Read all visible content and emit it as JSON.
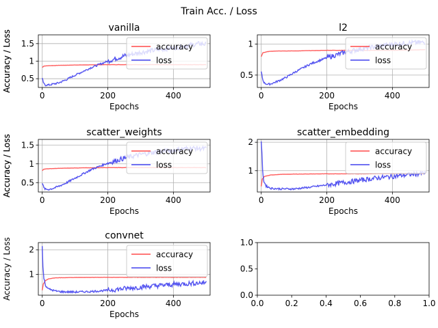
{
  "figure": {
    "title": "Train Acc. / Loss"
  },
  "colors": {
    "accuracy": "#ff4a4a",
    "loss": "#4040ee"
  },
  "chart_data": [
    {
      "type": "line",
      "title": "vanilla",
      "xlabel": "Epochs",
      "ylabel": "Accuracy / Loss",
      "xlim": [
        -12,
        512
      ],
      "ylim": [
        0.25,
        1.75
      ],
      "xticks": [
        0,
        200,
        400
      ],
      "yticks": [
        0.5,
        1.0,
        1.5
      ],
      "grid": true,
      "legend": "upper right",
      "series": [
        {
          "name": "accuracy",
          "x": [
            0,
            5,
            20,
            50,
            100,
            200,
            300,
            400,
            500
          ],
          "y": [
            0.82,
            0.86,
            0.87,
            0.88,
            0.89,
            0.9,
            0.9,
            0.9,
            0.9
          ]
        },
        {
          "name": "loss",
          "x": [
            0,
            5,
            10,
            20,
            30,
            50,
            75,
            100,
            150,
            200,
            250,
            300,
            350,
            400,
            450,
            480,
            500
          ],
          "y": [
            0.5,
            0.35,
            0.32,
            0.32,
            0.34,
            0.38,
            0.48,
            0.6,
            0.82,
            1.0,
            1.15,
            1.25,
            1.32,
            1.38,
            1.45,
            1.5,
            1.48
          ],
          "noisy": true
        }
      ]
    },
    {
      "type": "line",
      "title": "l2",
      "xlabel": "Epochs",
      "ylabel": "Accuracy / Loss",
      "xlim": [
        -12,
        512
      ],
      "ylim": [
        0.3,
        1.15
      ],
      "xticks": [
        0,
        200,
        400
      ],
      "yticks": [
        0.5,
        1.0
      ],
      "grid": true,
      "legend": "upper right",
      "series": [
        {
          "name": "accuracy",
          "x": [
            0,
            5,
            20,
            50,
            100,
            200,
            300,
            400,
            500
          ],
          "y": [
            0.8,
            0.86,
            0.88,
            0.89,
            0.89,
            0.9,
            0.9,
            0.9,
            0.91
          ]
        },
        {
          "name": "loss",
          "x": [
            0,
            5,
            10,
            20,
            30,
            50,
            75,
            100,
            150,
            200,
            250,
            300,
            350,
            400,
            450,
            500
          ],
          "y": [
            0.55,
            0.42,
            0.37,
            0.35,
            0.36,
            0.4,
            0.46,
            0.54,
            0.68,
            0.78,
            0.86,
            0.92,
            0.96,
            1.0,
            1.02,
            1.03
          ],
          "noisy": true
        }
      ]
    },
    {
      "type": "line",
      "title": "scatter_weights",
      "xlabel": "Epochs",
      "ylabel": "Accuracy / Loss",
      "xlim": [
        -12,
        512
      ],
      "ylim": [
        0.25,
        1.65
      ],
      "xticks": [
        0,
        200,
        400
      ],
      "yticks": [
        0.5,
        1.0,
        1.5
      ],
      "grid": true,
      "legend": "upper right",
      "series": [
        {
          "name": "accuracy",
          "x": [
            0,
            5,
            20,
            50,
            100,
            200,
            300,
            400,
            500
          ],
          "y": [
            0.82,
            0.86,
            0.87,
            0.88,
            0.89,
            0.9,
            0.9,
            0.9,
            0.9
          ]
        },
        {
          "name": "loss",
          "x": [
            0,
            5,
            10,
            20,
            30,
            50,
            75,
            100,
            150,
            200,
            250,
            300,
            350,
            400,
            450,
            500
          ],
          "y": [
            0.5,
            0.36,
            0.32,
            0.32,
            0.34,
            0.4,
            0.5,
            0.62,
            0.85,
            1.02,
            1.15,
            1.25,
            1.32,
            1.36,
            1.42,
            1.4
          ],
          "noisy": true
        }
      ]
    },
    {
      "type": "line",
      "title": "scatter_embedding",
      "xlabel": "Epochs",
      "ylabel": "Accuracy / Loss",
      "xlim": [
        -12,
        512
      ],
      "ylim": [
        0.25,
        2.1
      ],
      "xticks": [
        0,
        200,
        400
      ],
      "yticks": [
        1,
        2
      ],
      "grid": true,
      "legend": "upper right",
      "series": [
        {
          "name": "accuracy",
          "x": [
            0,
            3,
            10,
            30,
            60,
            100,
            200,
            300,
            400,
            500
          ],
          "y": [
            0.45,
            0.7,
            0.8,
            0.85,
            0.87,
            0.88,
            0.89,
            0.89,
            0.9,
            0.9
          ]
        },
        {
          "name": "loss",
          "x": [
            0,
            2,
            4,
            8,
            15,
            30,
            60,
            100,
            150,
            200,
            250,
            300,
            350,
            400,
            450,
            500
          ],
          "y": [
            2.05,
            1.6,
            1.0,
            0.62,
            0.46,
            0.38,
            0.36,
            0.36,
            0.42,
            0.5,
            0.58,
            0.66,
            0.74,
            0.8,
            0.86,
            0.92
          ],
          "noisy": true
        }
      ]
    },
    {
      "type": "line",
      "title": "convnet",
      "xlabel": "Epochs",
      "ylabel": "Accuracy / Loss",
      "xlim": [
        -12,
        512
      ],
      "ylim": [
        0.15,
        2.3
      ],
      "xticks": [
        0,
        200,
        400
      ],
      "yticks": [
        1,
        2
      ],
      "grid": true,
      "legend": "upper right",
      "series": [
        {
          "name": "accuracy",
          "x": [
            0,
            3,
            10,
            20,
            40,
            80,
            150,
            250,
            400,
            500
          ],
          "y": [
            0.35,
            0.6,
            0.75,
            0.82,
            0.86,
            0.87,
            0.88,
            0.88,
            0.88,
            0.88
          ]
        },
        {
          "name": "loss",
          "x": [
            0,
            2,
            5,
            10,
            20,
            40,
            60,
            100,
            150,
            200,
            250,
            300,
            350,
            400,
            450,
            500
          ],
          "y": [
            2.15,
            1.3,
            0.85,
            0.55,
            0.4,
            0.32,
            0.29,
            0.28,
            0.3,
            0.35,
            0.42,
            0.48,
            0.54,
            0.59,
            0.63,
            0.67
          ],
          "noisy": true
        }
      ]
    },
    {
      "type": "line",
      "title": "",
      "xlabel": "",
      "ylabel": "",
      "xlim": [
        0,
        1
      ],
      "ylim": [
        0,
        1
      ],
      "xticks": [
        0.0,
        0.2,
        0.4,
        0.6,
        0.8,
        1.0
      ],
      "yticks": [
        0.0,
        0.5,
        1.0
      ],
      "xticklabels": [
        "0.0",
        "0.2",
        "0.4",
        "0.6",
        "0.8",
        "1.0"
      ],
      "yticklabels": [
        "0.0",
        "0.5",
        "1.0"
      ],
      "grid": false,
      "legend": "none",
      "series": []
    }
  ]
}
